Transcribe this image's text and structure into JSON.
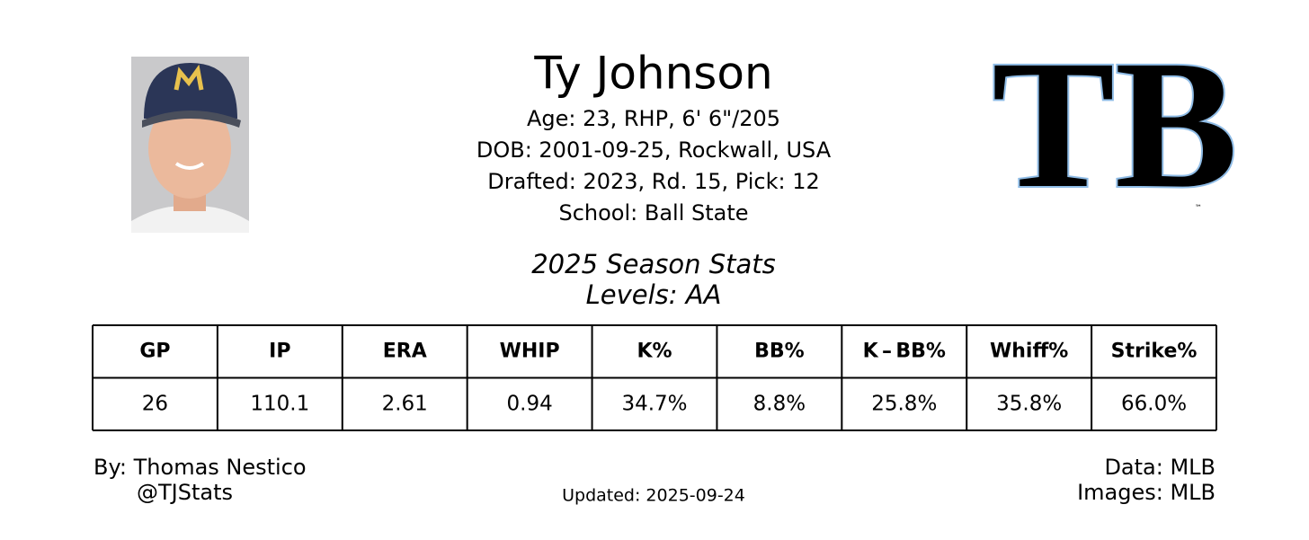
{
  "header": {
    "name": "Ty Johnson",
    "details": [
      "Age: 23, RHP, 6' 6\"/205",
      "DOB: 2001-09-25, Rockwall, USA",
      "Drafted: 2023, Rd. 15, Pick: 12",
      "School: Ball State"
    ]
  },
  "logo": {
    "text": "TB",
    "trademark": "™"
  },
  "section": {
    "title": "2025 Season Stats",
    "levels": "Levels: AA"
  },
  "table": {
    "columns": [
      "GP",
      "IP",
      "ERA",
      "WHIP",
      "K%",
      "BB%",
      "K – BB%",
      "Whiff%",
      "Strike%"
    ],
    "rows": [
      [
        "26",
        "110.1",
        "2.61",
        "0.94",
        "34.7%",
        "8.8%",
        "25.8%",
        "35.8%",
        "66.0%"
      ]
    ]
  },
  "footer": {
    "author": "By: Thomas Nestico",
    "handle": "@TJStats",
    "updated": "Updated: 2025-09-24",
    "data_source": "Data: MLB",
    "image_source": "Images: MLB"
  }
}
